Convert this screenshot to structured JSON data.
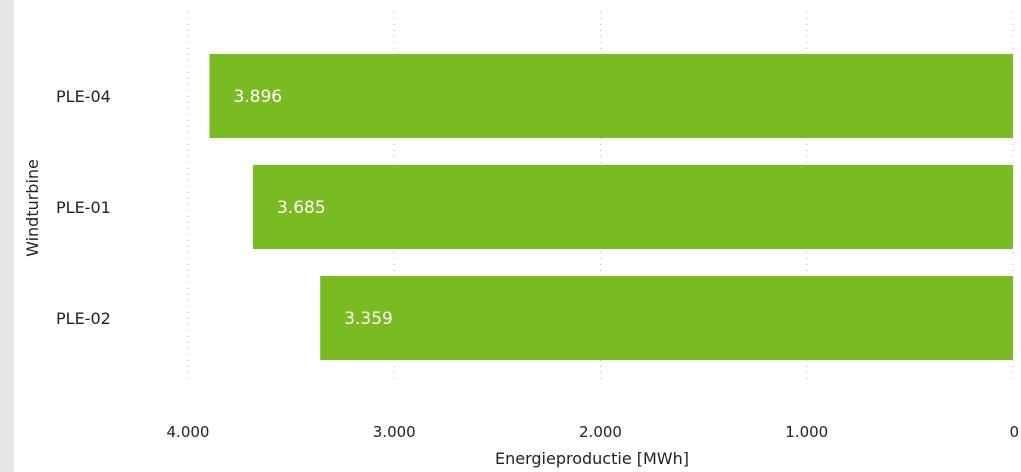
{
  "chart_data": {
    "type": "bar",
    "orientation": "horizontal",
    "categories": [
      "PLE-04",
      "PLE-01",
      "PLE-02"
    ],
    "values": [
      3896,
      3685,
      3359
    ],
    "value_labels": [
      "3.896",
      "3.685",
      "3.359"
    ],
    "xlabel": "Energieproductie [MWh]",
    "ylabel": "Windturbine",
    "xlim": [
      4000,
      0
    ],
    "x_reversed": true,
    "x_ticks": [
      4000,
      3000,
      2000,
      1000,
      0
    ],
    "x_tick_labels": [
      "4.000",
      "3.000",
      "2.000",
      "1.000",
      "0"
    ],
    "grid": "vertical dotted",
    "legend": "none"
  },
  "colors": {
    "bar": "#79bc22",
    "bar_label": "#ffffff",
    "text": "#222222",
    "grid": "#b8b8b8",
    "left_strip": "#e6e6e6"
  }
}
